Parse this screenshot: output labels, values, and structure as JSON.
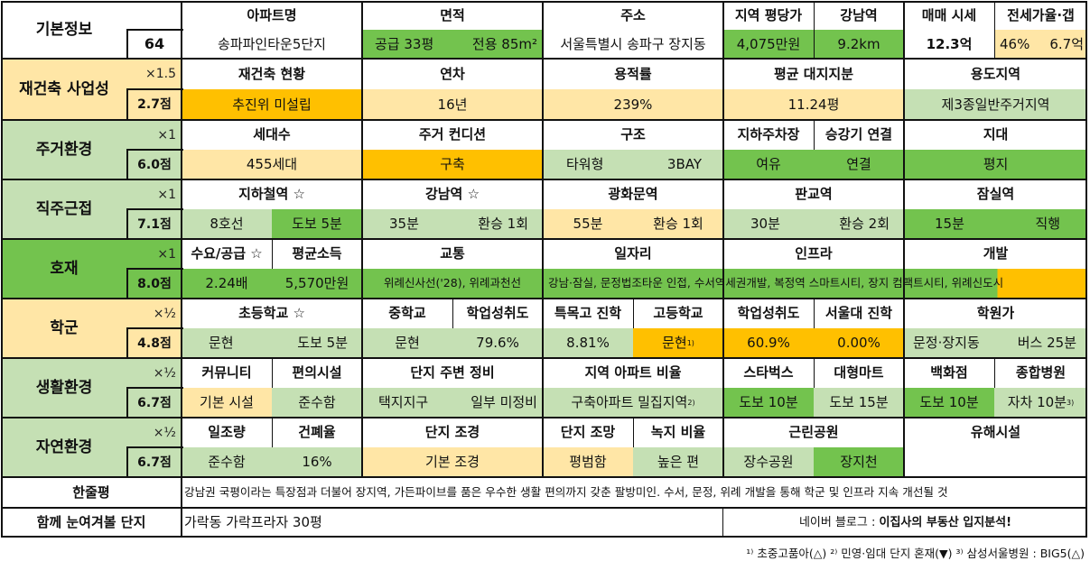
{
  "colors": {
    "bright_green": "#73c34e",
    "light_green": "#c5e0b4",
    "light_orange": "#ffe6a6",
    "orange": "#ffc000",
    "white": "#ffffff",
    "border": "#111111"
  },
  "basic": {
    "label": "기본정보",
    "number": "64",
    "headers": [
      "아파트명",
      "면적",
      "주소",
      "지역 평당가",
      "강남역",
      "매매 시세",
      "전세가율·갭"
    ],
    "name": "송파파인타운5단지",
    "area_supply": "공급 33평",
    "area_exclusive": "전용 85m²",
    "address": "서울특별시 송파구 장지동",
    "price_per_pyeong": "4,075만원",
    "gangnam_distance": "9.2km",
    "sale_price": "12.3억",
    "jeonse_ratio": "46%",
    "gap": "6.7억"
  },
  "rebuild": {
    "label": "재건축 사업성",
    "weight": "×1.5",
    "score": "2.7점",
    "headers": [
      "재건축 현황",
      "연차",
      "용적률",
      "평균 대지지분",
      "용도지역"
    ],
    "values": [
      "추진위 미설립",
      "16년",
      "239%",
      "11.24평",
      "제3종일반주거지역"
    ]
  },
  "living": {
    "label": "주거환경",
    "weight": "×1",
    "score": "6.0점",
    "headers": [
      "세대수",
      "주거 컨디션",
      "구조",
      "지하주차장",
      "승강기 연결",
      "지대"
    ],
    "households": "455세대",
    "condition": "구축",
    "structure_type": "타워형",
    "structure_bay": "3BAY",
    "parking": "여유",
    "elevator": "연결",
    "terrain": "평지"
  },
  "commute": {
    "label": "직주근접",
    "weight": "×1",
    "score": "7.1점",
    "headers": [
      "지하철역 ☆",
      "강남역 ☆",
      "광화문역",
      "판교역",
      "잠실역"
    ],
    "subway_line": "8호선",
    "subway_walk": "도보 5분",
    "gangnam_time": "35분",
    "gangnam_transfer": "환승 1회",
    "gwanghwamun_time": "55분",
    "gwanghwamun_transfer": "환승 1회",
    "pangyo_time": "30분",
    "pangyo_transfer": "환승 2회",
    "jamsil_time": "15분",
    "jamsil_transfer": "직행"
  },
  "development": {
    "label": "호재",
    "weight": "×1",
    "score": "8.0점",
    "headers": [
      "수요/공급 ☆",
      "평균소득",
      "교통",
      "일자리",
      "인프라",
      "개발"
    ],
    "supply_demand": "2.24배",
    "income": "5,570만원",
    "transport_text": "위례신사선('28), 위례과천선",
    "multi_text": "강남·잠실, 문정법조타운 인접, 수서역세권개발, 복정역 스마트시티, 장지 컴팩트시티, 위례신도시"
  },
  "school": {
    "label": "학군",
    "weight": "×½",
    "score": "4.8점",
    "headers": [
      "초등학교 ☆",
      "중학교",
      "학업성취도",
      "특목고 진학",
      "고등학교",
      "학업성취도",
      "서울대 진학",
      "학원가"
    ],
    "elementary": "문현",
    "elementary_walk": "도보 5분",
    "middle": "문현",
    "middle_achievement": "79.6%",
    "special_high": "8.81%",
    "high": "문현",
    "high_sup": "1)",
    "high_achievement": "60.9%",
    "snu": "0.00%",
    "academy": "문정·장지동",
    "academy_bus": "버스 25분"
  },
  "life": {
    "label": "생활환경",
    "weight": "×½",
    "score": "6.7점",
    "headers": [
      "커뮤니티",
      "편의시설",
      "단지 주변 정비",
      "지역 아파트 비율",
      "스타벅스",
      "대형마트",
      "백화점",
      "종합병원"
    ],
    "community": "기본 시설",
    "convenience": "준수함",
    "surroundings_1": "택지지구",
    "surroundings_2": "일부 미정비",
    "apartment_ratio": "구축아파트 밀집지역",
    "apartment_ratio_sup": "2)",
    "starbucks": "도보 10분",
    "mart": "도보 15분",
    "department": "도보 10분",
    "hospital": "자차 10분",
    "hospital_sup": "3)"
  },
  "nature": {
    "label": "자연환경",
    "weight": "×½",
    "score": "6.7점",
    "headers": [
      "일조량",
      "건폐율",
      "단지 조경",
      "단지 조망",
      "녹지 비율",
      "근린공원",
      "유해시설"
    ],
    "sunlight": "준수함",
    "coverage": "16%",
    "landscape": "기본 조경",
    "view": "평범함",
    "green_ratio": "높은 편",
    "park_1": "장수공원",
    "park_2": "장지천",
    "hazard": ""
  },
  "summary": {
    "label": "한줄평",
    "text": "강남권 국평이라는 특장점과 더불어 장지역, 가든파이브를 품은 우수한 생활 편의까지 갖춘 팔방미인. 수서, 문정, 위례 개발을 통해 학군 및 인프라 지속 개선될 것"
  },
  "together": {
    "label": "함께 눈여겨볼 단지",
    "text": "가락동 가락프라자 30평",
    "blog_prefix": "네이버 블로그 : ",
    "blog_name": "이집사의 부동산 입지분석!"
  },
  "footnotes": "¹⁾ 초중고품아(△) ²⁾ 민영·임대 단지 혼재(▼) ³⁾ 삼성서울병원 : BIG5(△)"
}
